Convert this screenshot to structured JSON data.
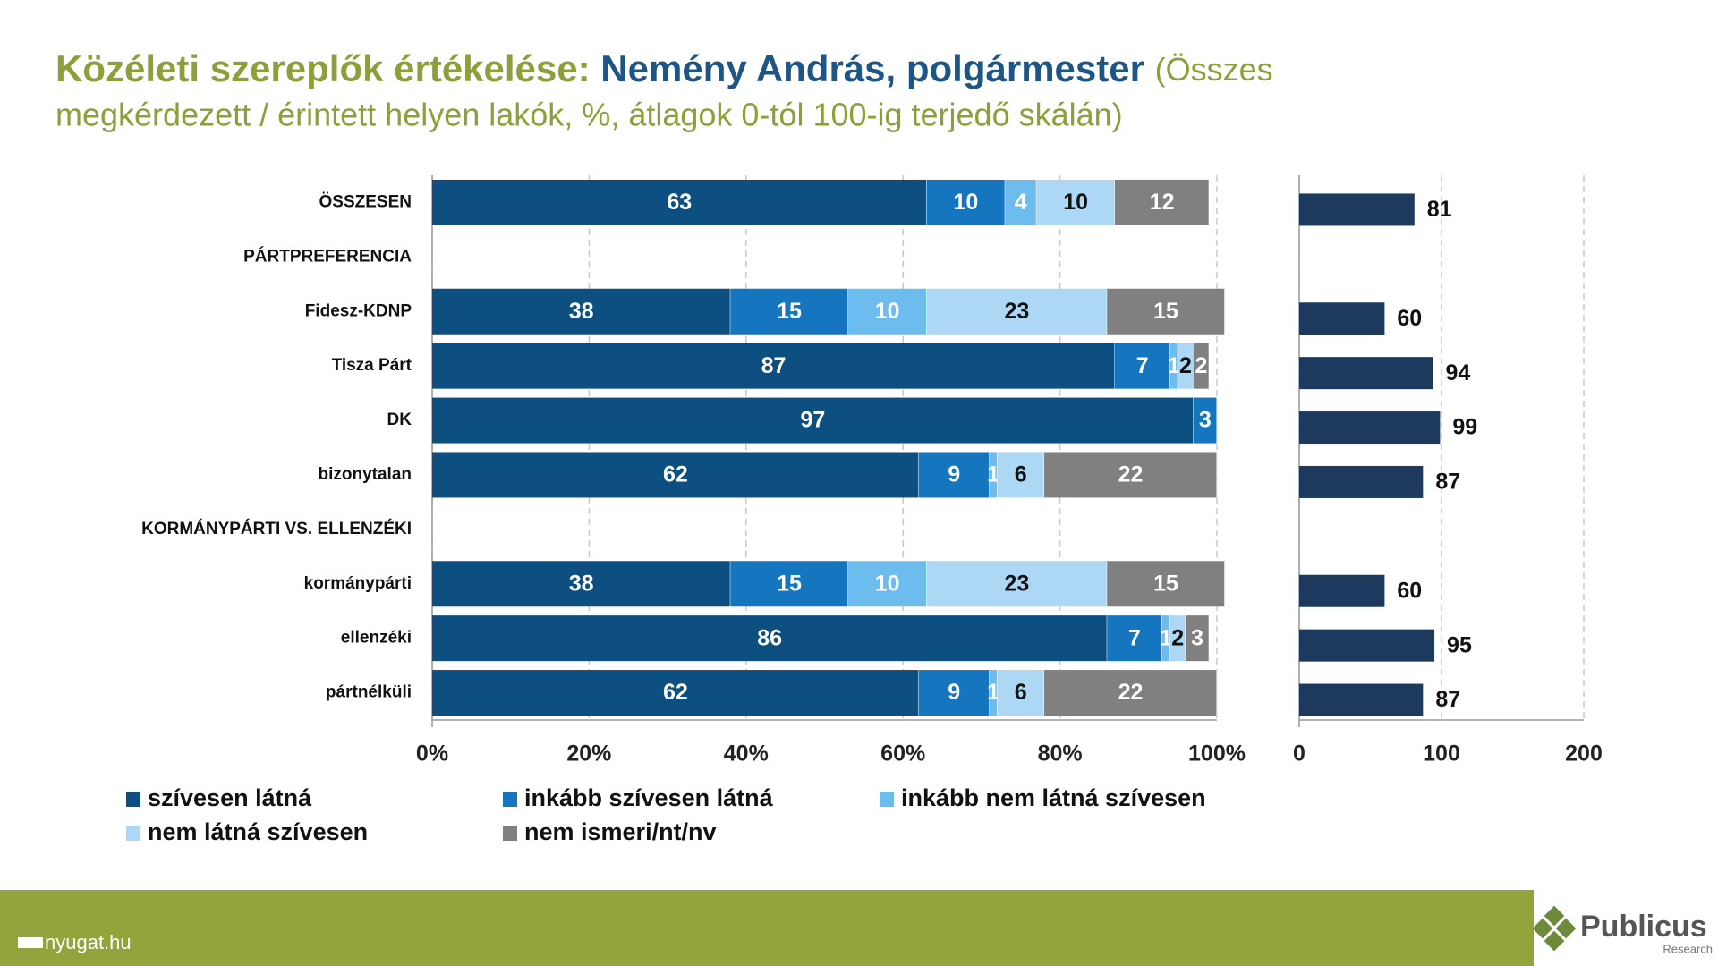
{
  "header": {
    "title_prefix": "Közéleti szereplők értékelése:",
    "title_name": "Nemény András, polgármester",
    "title_note_1": "(Összes",
    "title_note_2": "megkérdezett / érintett helyen lakók, %, átlagok 0-tól 100-ig terjedő skálán)"
  },
  "footer": {
    "source": "nyugat.hu",
    "logo": "Publicus",
    "logo_sub": "Research"
  },
  "chart_data": [
    {
      "type": "stacked_bar",
      "orientation": "horizontal",
      "categories": [
        "ÖSSZESEN",
        "PÁRTPREFERENCIA",
        "Fidesz-KDNP",
        "Tisza Párt",
        "DK",
        "bizonytalan",
        "KORMÁNYPÁRTI VS. ELLENZÉKI",
        "kormánypárti",
        "ellenzéki",
        "pártnélküli"
      ],
      "series": [
        {
          "name": "szívesen látná",
          "color": "#0d4f80",
          "values": [
            63,
            null,
            38,
            87,
            97,
            62,
            null,
            38,
            86,
            62
          ]
        },
        {
          "name": "inkább szívesen látná",
          "color": "#1675bf",
          "values": [
            10,
            null,
            15,
            7,
            3,
            9,
            null,
            15,
            7,
            9
          ]
        },
        {
          "name": "inkább nem látná szívesen",
          "color": "#6cbcee",
          "values": [
            4,
            null,
            10,
            1,
            0,
            1,
            null,
            10,
            1,
            1
          ]
        },
        {
          "name": "nem látná szívesen",
          "color": "#acd8f6",
          "values": [
            10,
            null,
            23,
            2,
            0,
            6,
            null,
            23,
            2,
            6
          ]
        },
        {
          "name": "nem ismeri/nt/nv",
          "color": "#808080",
          "values": [
            12,
            null,
            15,
            2,
            0,
            22,
            null,
            15,
            3,
            22
          ]
        }
      ],
      "xlim": [
        0,
        100
      ],
      "xticks": [
        {
          "value": 0,
          "label": "0%"
        },
        {
          "value": 20,
          "label": "20%"
        },
        {
          "value": 40,
          "label": "40%"
        },
        {
          "value": 60,
          "label": "60%"
        },
        {
          "value": 80,
          "label": "80%"
        },
        {
          "value": 100,
          "label": "100%"
        }
      ],
      "grid": true
    },
    {
      "type": "bar",
      "orientation": "horizontal",
      "values": [
        81,
        null,
        60,
        94,
        99,
        87,
        null,
        60,
        95,
        87
      ],
      "color": "#1d3a5e",
      "xlim": [
        0,
        200
      ],
      "xticks": [
        0,
        100,
        200
      ],
      "grid": true
    }
  ]
}
